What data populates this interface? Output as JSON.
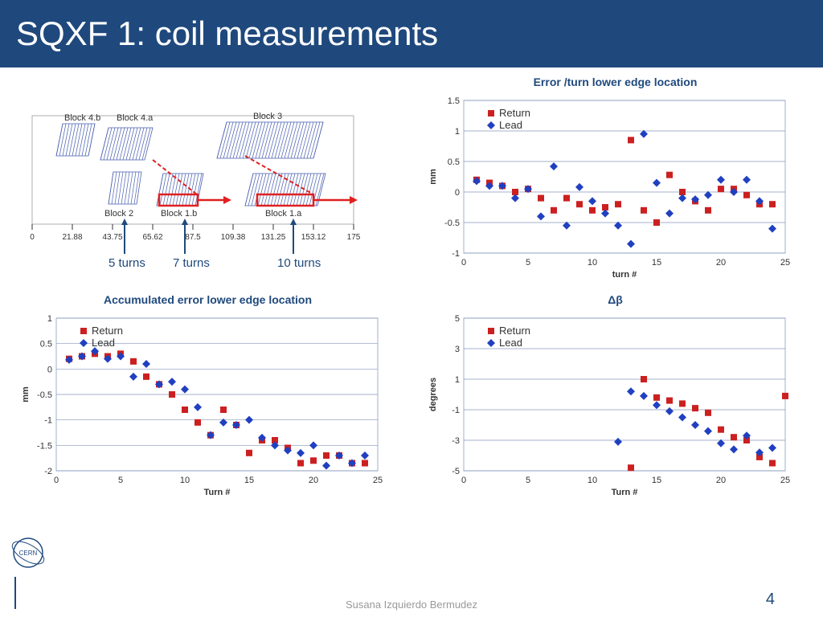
{
  "title": "SQXF 1: coil measurements",
  "author": "Susana Izquierdo Bermudez",
  "page_number": "4",
  "diagram": {
    "block_labels": [
      "Block 4.b",
      "Block 4.a",
      "Block 3",
      "Block 2",
      "Block 1.b",
      "Block 1.a"
    ],
    "xticks": [
      "0",
      "21.88",
      "43.75",
      "65.62",
      "87.5",
      "109.38",
      "131.25",
      "153.12",
      "175"
    ],
    "annotations": [
      "5 turns",
      "7 turns",
      "10 turns"
    ],
    "hatch_color": "#4a5fb0",
    "highlight_color": "#e02020"
  },
  "chart_error_turn": {
    "title": "Error /turn lower edge location",
    "ylabel": "mm",
    "xlabel": "turn #",
    "xlim": [
      0,
      25
    ],
    "ylim": [
      -1,
      1.5
    ],
    "xticks": [
      0,
      5,
      10,
      15,
      20,
      25
    ],
    "yticks": [
      -1,
      -0.5,
      0,
      0.5,
      1,
      1.5
    ],
    "legend": [
      "Return",
      "Lead"
    ],
    "return_color": "#cc2020",
    "lead_color": "#2040c0",
    "return": [
      [
        1,
        0.2
      ],
      [
        2,
        0.15
      ],
      [
        3,
        0.1
      ],
      [
        4,
        0
      ],
      [
        5,
        0.05
      ],
      [
        6,
        -0.1
      ],
      [
        7,
        -0.3
      ],
      [
        8,
        -0.1
      ],
      [
        9,
        -0.2
      ],
      [
        10,
        -0.3
      ],
      [
        11,
        -0.25
      ],
      [
        12,
        -0.2
      ],
      [
        13,
        0.85
      ],
      [
        14,
        -0.3
      ],
      [
        15,
        -0.5
      ],
      [
        16,
        0.28
      ],
      [
        17,
        0
      ],
      [
        18,
        -0.15
      ],
      [
        19,
        -0.3
      ],
      [
        20,
        0.05
      ],
      [
        21,
        0.05
      ],
      [
        22,
        -0.05
      ],
      [
        23,
        -0.2
      ],
      [
        24,
        -0.2
      ]
    ],
    "lead": [
      [
        1,
        0.18
      ],
      [
        2,
        0.1
      ],
      [
        3,
        0.1
      ],
      [
        4,
        -0.1
      ],
      [
        5,
        0.05
      ],
      [
        6,
        -0.4
      ],
      [
        7,
        0.42
      ],
      [
        8,
        -0.55
      ],
      [
        9,
        0.08
      ],
      [
        10,
        -0.15
      ],
      [
        11,
        -0.35
      ],
      [
        12,
        -0.55
      ],
      [
        13,
        -0.85
      ],
      [
        14,
        0.95
      ],
      [
        15,
        0.15
      ],
      [
        16,
        -0.35
      ],
      [
        17,
        -0.1
      ],
      [
        18,
        -0.12
      ],
      [
        19,
        -0.05
      ],
      [
        20,
        0.2
      ],
      [
        21,
        0
      ],
      [
        22,
        0.2
      ],
      [
        23,
        -0.15
      ],
      [
        24,
        -0.6
      ]
    ]
  },
  "chart_accum": {
    "title": "Accumulated error lower edge location",
    "ylabel": "mm",
    "xlabel": "Turn #",
    "xlim": [
      0,
      25
    ],
    "ylim": [
      -2,
      1
    ],
    "xticks": [
      0,
      5,
      10,
      15,
      20,
      25
    ],
    "yticks": [
      -2,
      -1.5,
      -1,
      -0.5,
      0,
      0.5,
      1
    ],
    "legend": [
      "Return",
      "Lead"
    ],
    "return_color": "#cc2020",
    "lead_color": "#2040c0",
    "return": [
      [
        1,
        0.2
      ],
      [
        2,
        0.25
      ],
      [
        3,
        0.3
      ],
      [
        4,
        0.25
      ],
      [
        5,
        0.3
      ],
      [
        6,
        0.15
      ],
      [
        7,
        -0.15
      ],
      [
        8,
        -0.3
      ],
      [
        9,
        -0.5
      ],
      [
        10,
        -0.8
      ],
      [
        11,
        -1.05
      ],
      [
        12,
        -1.3
      ],
      [
        13,
        -0.8
      ],
      [
        14,
        -1.1
      ],
      [
        15,
        -1.65
      ],
      [
        16,
        -1.4
      ],
      [
        17,
        -1.4
      ],
      [
        18,
        -1.55
      ],
      [
        19,
        -1.85
      ],
      [
        20,
        -1.8
      ],
      [
        21,
        -1.7
      ],
      [
        22,
        -1.7
      ],
      [
        23,
        -1.85
      ],
      [
        24,
        -1.85
      ]
    ],
    "lead": [
      [
        1,
        0.18
      ],
      [
        2,
        0.25
      ],
      [
        3,
        0.35
      ],
      [
        4,
        0.2
      ],
      [
        5,
        0.25
      ],
      [
        6,
        -0.15
      ],
      [
        7,
        0.1
      ],
      [
        8,
        -0.3
      ],
      [
        9,
        -0.25
      ],
      [
        10,
        -0.4
      ],
      [
        11,
        -0.75
      ],
      [
        12,
        -1.3
      ],
      [
        13,
        -1.05
      ],
      [
        14,
        -1.1
      ],
      [
        15,
        -1.0
      ],
      [
        16,
        -1.35
      ],
      [
        17,
        -1.5
      ],
      [
        18,
        -1.6
      ],
      [
        19,
        -1.65
      ],
      [
        20,
        -1.5
      ],
      [
        21,
        -1.9
      ],
      [
        22,
        -1.7
      ],
      [
        23,
        -1.85
      ],
      [
        24,
        -1.7
      ]
    ]
  },
  "chart_db": {
    "title": "Δβ",
    "ylabel": "degrees",
    "xlabel": "Turn #",
    "xlim": [
      0,
      25
    ],
    "ylim": [
      -5,
      5
    ],
    "xticks": [
      0,
      5,
      10,
      15,
      20,
      25
    ],
    "yticks": [
      -5,
      -3,
      -1,
      1,
      3,
      5
    ],
    "legend": [
      "Return",
      "Lead"
    ],
    "return_color": "#cc2020",
    "lead_color": "#2040c0",
    "return": [
      [
        13,
        -4.8
      ],
      [
        14,
        1.0
      ],
      [
        15,
        -0.2
      ],
      [
        16,
        -0.4
      ],
      [
        17,
        -0.6
      ],
      [
        18,
        -0.9
      ],
      [
        19,
        -1.2
      ],
      [
        20,
        -2.3
      ],
      [
        21,
        -2.8
      ],
      [
        22,
        -3.0
      ],
      [
        23,
        -4.1
      ],
      [
        24,
        -4.5
      ],
      [
        25,
        -0.1
      ]
    ],
    "lead": [
      [
        12,
        -3.1
      ],
      [
        13,
        0.2
      ],
      [
        14,
        -0.1
      ],
      [
        15,
        -0.7
      ],
      [
        16,
        -1.1
      ],
      [
        17,
        -1.5
      ],
      [
        18,
        -2.0
      ],
      [
        19,
        -2.4
      ],
      [
        20,
        -3.2
      ],
      [
        21,
        -3.6
      ],
      [
        22,
        -2.7
      ],
      [
        23,
        -3.8
      ],
      [
        24,
        -3.5
      ]
    ]
  },
  "style": {
    "grid_color": "#8899bb",
    "border_color": "#9cb0d0",
    "bg": "#ffffff"
  }
}
